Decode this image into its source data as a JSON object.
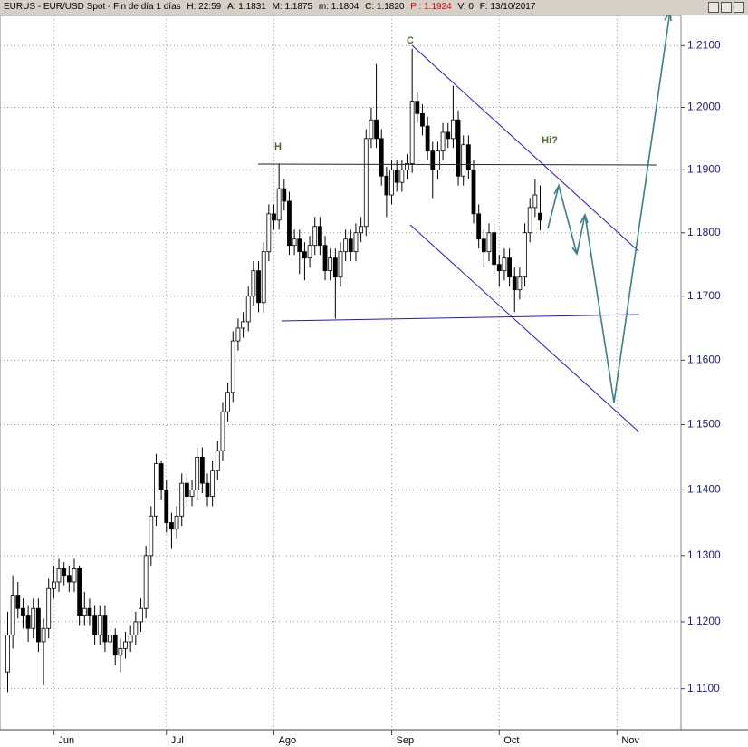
{
  "header": {
    "title": "EURUS - EUR/USD Spot - Fin de día 1 días",
    "fields": [
      "H: 22:59",
      "A: 1.1831",
      "M: 1.1875",
      "m: 1.1804",
      "C: 1.1820",
      "P : 1.1924",
      "V: 0",
      "F: 13/10/2017"
    ]
  },
  "chart_data": {
    "type": "candlestick",
    "log_scale": true,
    "grid": true,
    "up_color": "#ffffff",
    "down_color": "#000000",
    "wick_color": "#000000",
    "annotations": [
      "H",
      "C",
      "Hi?"
    ],
    "xlim": [
      -1.5,
      131.5
    ],
    "xticks": [
      {
        "value": 9,
        "label": "Jun"
      },
      {
        "value": 31,
        "label": "Jul"
      },
      {
        "value": 52,
        "label": "Ago"
      },
      {
        "value": 75,
        "label": "Sep"
      },
      {
        "value": 96,
        "label": "Oct"
      },
      {
        "value": 119,
        "label": "Nov"
      }
    ],
    "ylim": [
      1.1039,
      1.2152
    ],
    "yticks": [
      {
        "value": 1.11,
        "label": "1.1100"
      },
      {
        "value": 1.12,
        "label": "1.1200"
      },
      {
        "value": 1.13,
        "label": "1.1300"
      },
      {
        "value": 1.14,
        "label": "1.1400"
      },
      {
        "value": 1.15,
        "label": "1.1500"
      },
      {
        "value": 1.16,
        "label": "1.1600"
      },
      {
        "value": 1.17,
        "label": "1.1700"
      },
      {
        "value": 1.18,
        "label": "1.1800"
      },
      {
        "value": 1.19,
        "label": "1.1900"
      },
      {
        "value": 1.2,
        "label": "1.2000"
      },
      {
        "value": 1.21,
        "label": "1.2100"
      }
    ],
    "ohlc": [
      [
        1.1125,
        1.1215,
        1.1095,
        1.118
      ],
      [
        1.118,
        1.127,
        1.116,
        1.124
      ],
      [
        1.124,
        1.126,
        1.1205,
        1.122
      ],
      [
        1.122,
        1.1235,
        1.119,
        1.121
      ],
      [
        1.121,
        1.1225,
        1.117,
        1.119
      ],
      [
        1.119,
        1.1235,
        1.1175,
        1.122
      ],
      [
        1.122,
        1.1235,
        1.1155,
        1.117
      ],
      [
        1.117,
        1.1205,
        1.1105,
        1.119
      ],
      [
        1.119,
        1.1265,
        1.1175,
        1.125
      ],
      [
        1.125,
        1.1285,
        1.1235,
        1.126
      ],
      [
        1.126,
        1.1295,
        1.1245,
        1.128
      ],
      [
        1.128,
        1.129,
        1.1255,
        1.127
      ],
      [
        1.127,
        1.1285,
        1.1245,
        1.126
      ],
      [
        1.126,
        1.1295,
        1.1245,
        1.128
      ],
      [
        1.128,
        1.1285,
        1.1195,
        1.121
      ],
      [
        1.121,
        1.1245,
        1.1195,
        1.122
      ],
      [
        1.122,
        1.1235,
        1.1195,
        1.121
      ],
      [
        1.121,
        1.1225,
        1.1165,
        1.118
      ],
      [
        1.118,
        1.1225,
        1.1165,
        1.121
      ],
      [
        1.121,
        1.1225,
        1.1155,
        1.117
      ],
      [
        1.117,
        1.1195,
        1.115,
        1.118
      ],
      [
        1.118,
        1.119,
        1.1135,
        1.115
      ],
      [
        1.115,
        1.1175,
        1.1125,
        1.116
      ],
      [
        1.116,
        1.1185,
        1.1145,
        1.117
      ],
      [
        1.117,
        1.1195,
        1.1155,
        1.118
      ],
      [
        1.118,
        1.1215,
        1.1165,
        1.12
      ],
      [
        1.12,
        1.1235,
        1.1185,
        1.122
      ],
      [
        1.122,
        1.1315,
        1.1205,
        1.13
      ],
      [
        1.13,
        1.1375,
        1.1285,
        1.136
      ],
      [
        1.136,
        1.1455,
        1.1345,
        1.144
      ],
      [
        1.144,
        1.1445,
        1.1385,
        1.14
      ],
      [
        1.14,
        1.1415,
        1.1335,
        1.135
      ],
      [
        1.135,
        1.1365,
        1.131,
        1.134
      ],
      [
        1.134,
        1.1375,
        1.1325,
        1.136
      ],
      [
        1.136,
        1.1425,
        1.1345,
        1.141
      ],
      [
        1.141,
        1.1425,
        1.1375,
        1.139
      ],
      [
        1.139,
        1.1415,
        1.1375,
        1.14
      ],
      [
        1.14,
        1.1465,
        1.1385,
        1.145
      ],
      [
        1.145,
        1.1465,
        1.1395,
        1.141
      ],
      [
        1.141,
        1.1425,
        1.1375,
        1.139
      ],
      [
        1.139,
        1.1445,
        1.1375,
        1.143
      ],
      [
        1.143,
        1.1475,
        1.1415,
        1.146
      ],
      [
        1.146,
        1.1535,
        1.1445,
        1.152
      ],
      [
        1.152,
        1.1565,
        1.1505,
        1.155
      ],
      [
        1.155,
        1.1645,
        1.1535,
        1.163
      ],
      [
        1.163,
        1.1665,
        1.1615,
        1.165
      ],
      [
        1.165,
        1.1675,
        1.1635,
        1.166
      ],
      [
        1.166,
        1.1715,
        1.1645,
        1.17
      ],
      [
        1.17,
        1.1755,
        1.1685,
        1.174
      ],
      [
        1.174,
        1.1755,
        1.1675,
        1.169
      ],
      [
        1.169,
        1.1785,
        1.1675,
        1.177
      ],
      [
        1.177,
        1.1845,
        1.1755,
        1.183
      ],
      [
        1.183,
        1.1845,
        1.1805,
        1.182
      ],
      [
        1.182,
        1.191,
        1.1805,
        1.187
      ],
      [
        1.187,
        1.1885,
        1.1835,
        1.185
      ],
      [
        1.185,
        1.1865,
        1.1765,
        1.178
      ],
      [
        1.178,
        1.1805,
        1.1765,
        1.179
      ],
      [
        1.179,
        1.1805,
        1.1735,
        1.177
      ],
      [
        1.177,
        1.1785,
        1.1725,
        1.176
      ],
      [
        1.176,
        1.1795,
        1.1745,
        1.178
      ],
      [
        1.178,
        1.1825,
        1.1765,
        1.181
      ],
      [
        1.181,
        1.1825,
        1.1765,
        1.178
      ],
      [
        1.178,
        1.1795,
        1.1725,
        1.174
      ],
      [
        1.174,
        1.1775,
        1.1725,
        1.176
      ],
      [
        1.176,
        1.1775,
        1.1665,
        1.173
      ],
      [
        1.173,
        1.1785,
        1.1715,
        1.177
      ],
      [
        1.177,
        1.1805,
        1.1755,
        1.179
      ],
      [
        1.179,
        1.1805,
        1.1755,
        1.177
      ],
      [
        1.177,
        1.1815,
        1.1755,
        1.18
      ],
      [
        1.18,
        1.1825,
        1.1785,
        1.181
      ],
      [
        1.181,
        1.1965,
        1.1795,
        1.195
      ],
      [
        1.195,
        1.2,
        1.1935,
        1.198
      ],
      [
        1.198,
        1.207,
        1.1935,
        1.195
      ],
      [
        1.195,
        1.1965,
        1.1875,
        1.189
      ],
      [
        1.189,
        1.1905,
        1.1825,
        1.186
      ],
      [
        1.186,
        1.1915,
        1.1845,
        1.19
      ],
      [
        1.19,
        1.1915,
        1.1865,
        1.188
      ],
      [
        1.188,
        1.1915,
        1.1865,
        1.19
      ],
      [
        1.19,
        1.1925,
        1.1885,
        1.191
      ],
      [
        1.191,
        1.2095,
        1.1895,
        1.201
      ],
      [
        1.201,
        1.2025,
        1.1975,
        1.199
      ],
      [
        1.199,
        1.2005,
        1.1955,
        1.197
      ],
      [
        1.197,
        1.1985,
        1.1915,
        1.193
      ],
      [
        1.193,
        1.1945,
        1.1855,
        1.19
      ],
      [
        1.19,
        1.1945,
        1.1885,
        1.193
      ],
      [
        1.193,
        1.1975,
        1.1915,
        1.196
      ],
      [
        1.196,
        1.1975,
        1.1935,
        1.195
      ],
      [
        1.195,
        1.2035,
        1.1935,
        1.198
      ],
      [
        1.198,
        1.1995,
        1.1875,
        1.189
      ],
      [
        1.189,
        1.1955,
        1.1875,
        1.194
      ],
      [
        1.194,
        1.1955,
        1.1885,
        1.19
      ],
      [
        1.19,
        1.1915,
        1.1815,
        1.183
      ],
      [
        1.183,
        1.1845,
        1.1775,
        1.179
      ],
      [
        1.179,
        1.1805,
        1.1745,
        1.177
      ],
      [
        1.177,
        1.1815,
        1.1755,
        1.18
      ],
      [
        1.18,
        1.1815,
        1.1735,
        1.175
      ],
      [
        1.175,
        1.1765,
        1.1715,
        1.174
      ],
      [
        1.174,
        1.1775,
        1.1725,
        1.176
      ],
      [
        1.176,
        1.1775,
        1.1715,
        1.173
      ],
      [
        1.173,
        1.1745,
        1.1675,
        1.171
      ],
      [
        1.171,
        1.1745,
        1.1695,
        1.173
      ],
      [
        1.173,
        1.1815,
        1.1715,
        1.18
      ],
      [
        1.18,
        1.1855,
        1.1785,
        1.184
      ],
      [
        1.184,
        1.1885,
        1.1825,
        1.186
      ],
      [
        1.1831,
        1.1875,
        1.1804,
        1.182
      ]
    ]
  }
}
